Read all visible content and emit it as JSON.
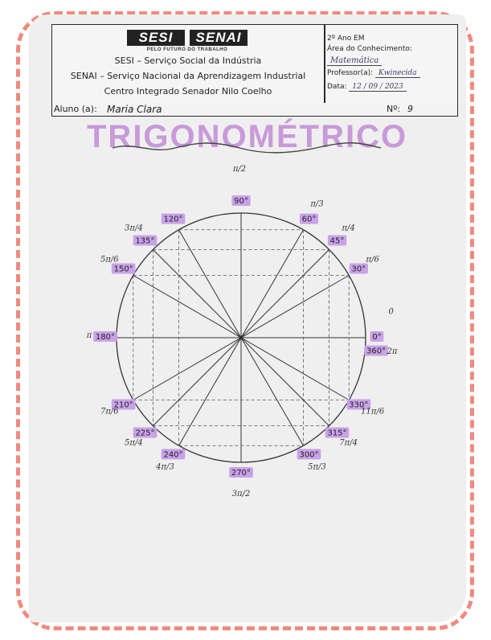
{
  "header": {
    "logo_left": "SESI",
    "logo_right": "SENAI",
    "tagline": "PELO FUTURO DO TRABALHO",
    "line1": "SESI – Serviço Social da Indústria",
    "line2": "SENAI – Serviço Nacional da Aprendizagem Industrial",
    "line3": "Centro Integrado Senador Nilo Coelho",
    "grade": "2º Ano EM",
    "area_label": "Área do Conhecimento:",
    "area_value": "Matemática",
    "teacher_label": "Professor(a):",
    "teacher_value": "Kwinecida",
    "date_label": "Data:",
    "date_value": "12 / 09 / 2023"
  },
  "student": {
    "name_label": "Aluno (a):",
    "name_value": "Maria Clara",
    "number_label": "Nº:",
    "number_value": "9"
  },
  "title": "TRIGONOMÉTRICO",
  "circle": {
    "label_color": "#c9a2e8",
    "angles": [
      {
        "deg": "0°",
        "rad": "0"
      },
      {
        "deg": "30°",
        "rad": "π/6"
      },
      {
        "deg": "45°",
        "rad": "π/4"
      },
      {
        "deg": "60°",
        "rad": "π/3"
      },
      {
        "deg": "90°",
        "rad": "π/2"
      },
      {
        "deg": "120°",
        "rad": ""
      },
      {
        "deg": "135°",
        "rad": "3π/4"
      },
      {
        "deg": "150°",
        "rad": "5π/6"
      },
      {
        "deg": "180°",
        "rad": "π"
      },
      {
        "deg": "210°",
        "rad": "7π/6"
      },
      {
        "deg": "225°",
        "rad": "5π/4"
      },
      {
        "deg": "240°",
        "rad": "4π/3"
      },
      {
        "deg": "270°",
        "rad": "3π/2"
      },
      {
        "deg": "300°",
        "rad": "5π/3"
      },
      {
        "deg": "315°",
        "rad": "7π/4"
      },
      {
        "deg": "330°",
        "rad": "11π/6"
      },
      {
        "deg": "360°",
        "rad": "2π"
      }
    ]
  }
}
